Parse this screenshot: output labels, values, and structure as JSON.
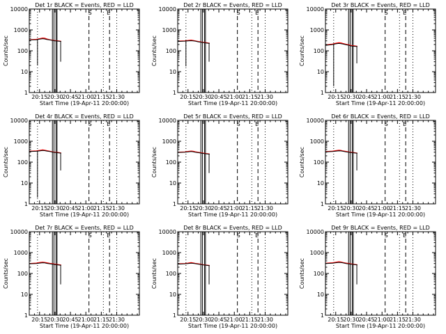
{
  "page": {
    "background": "#ffffff"
  },
  "colors": {
    "events": "#000000",
    "lld": "#ff0000"
  },
  "chart_data": {
    "type": "line",
    "yscale": "log",
    "ylim": [
      1,
      10000
    ],
    "yticks": [
      1,
      10,
      100,
      1000,
      10000
    ],
    "ytick_labels": [
      "1",
      "10",
      "100",
      "1000",
      "10000"
    ],
    "ylabel": "Counts/sec",
    "xlabel": "Start Time (19-Apr-11 20:00:00)",
    "xlim_min": [
      5,
      112
    ],
    "xticks_min": [
      15,
      30,
      45,
      60,
      75,
      90
    ],
    "xtick_labels": [
      "20:15",
      "20:30",
      "20:45",
      "21:00",
      "21:15",
      "21:30"
    ],
    "dotted_vlines_min": [
      13,
      77,
      90
    ],
    "dashed_vlines_min": [
      63,
      83
    ],
    "solid_vlines_min": [
      27.5,
      29,
      31,
      32
    ],
    "markers": [
      {
        "label": "S",
        "min": 64
      },
      {
        "label": "E",
        "min": 82
      }
    ],
    "panels": [
      {
        "title": "Det 1r BLACK = Events, RED = LLD",
        "events": [
          [
            5,
            330
          ],
          [
            12,
            340
          ],
          [
            15,
            360
          ],
          [
            18,
            380
          ],
          [
            20,
            370
          ],
          [
            22,
            350
          ],
          [
            25,
            330
          ],
          [
            28,
            310
          ],
          [
            30,
            300
          ],
          [
            33,
            290
          ],
          [
            36,
            280
          ]
        ],
        "lld": [
          [
            5,
            340
          ],
          [
            12,
            355
          ],
          [
            15,
            380
          ],
          [
            18,
            410
          ],
          [
            20,
            400
          ],
          [
            22,
            370
          ],
          [
            25,
            340
          ],
          [
            28,
            320
          ],
          [
            30,
            310
          ],
          [
            33,
            300
          ],
          [
            36,
            285
          ]
        ],
        "dips": [
          [
            13,
            20
          ],
          [
            35.5,
            30
          ]
        ]
      },
      {
        "title": "Det 2r BLACK = Events, RED = LLD",
        "events": [
          [
            5,
            280
          ],
          [
            12,
            290
          ],
          [
            15,
            300
          ],
          [
            18,
            305
          ],
          [
            20,
            300
          ],
          [
            22,
            290
          ],
          [
            25,
            270
          ],
          [
            28,
            255
          ],
          [
            30,
            245
          ],
          [
            33,
            235
          ],
          [
            36,
            225
          ]
        ],
        "lld": [
          [
            5,
            290
          ],
          [
            12,
            300
          ],
          [
            15,
            315
          ],
          [
            18,
            325
          ],
          [
            20,
            315
          ],
          [
            22,
            300
          ],
          [
            25,
            280
          ],
          [
            28,
            265
          ],
          [
            30,
            255
          ],
          [
            33,
            245
          ],
          [
            36,
            230
          ]
        ],
        "dips": [
          [
            13,
            18
          ],
          [
            35.5,
            30
          ]
        ]
      },
      {
        "title": "Det 3r BLACK = Events, RED = LLD",
        "events": [
          [
            5,
            180
          ],
          [
            12,
            200
          ],
          [
            15,
            215
          ],
          [
            18,
            225
          ],
          [
            20,
            220
          ],
          [
            22,
            210
          ],
          [
            25,
            195
          ],
          [
            28,
            180
          ],
          [
            30,
            170
          ],
          [
            33,
            165
          ],
          [
            36,
            160
          ]
        ],
        "lld": [
          [
            5,
            190
          ],
          [
            12,
            210
          ],
          [
            15,
            230
          ],
          [
            18,
            245
          ],
          [
            20,
            240
          ],
          [
            22,
            225
          ],
          [
            25,
            205
          ],
          [
            28,
            190
          ],
          [
            30,
            180
          ],
          [
            33,
            172
          ],
          [
            36,
            165
          ]
        ],
        "dips": [
          [
            13,
            2
          ],
          [
            35.5,
            25
          ]
        ]
      },
      {
        "title": "Det 4r BLACK = Events, RED = LLD",
        "events": [
          [
            5,
            320
          ],
          [
            12,
            330
          ],
          [
            15,
            345
          ],
          [
            18,
            360
          ],
          [
            20,
            355
          ],
          [
            22,
            340
          ],
          [
            25,
            320
          ],
          [
            28,
            300
          ],
          [
            30,
            290
          ],
          [
            33,
            280
          ],
          [
            36,
            270
          ]
        ],
        "lld": [
          [
            5,
            330
          ],
          [
            12,
            345
          ],
          [
            15,
            365
          ],
          [
            18,
            385
          ],
          [
            20,
            375
          ],
          [
            22,
            355
          ],
          [
            25,
            330
          ],
          [
            28,
            310
          ],
          [
            30,
            300
          ],
          [
            33,
            290
          ],
          [
            36,
            275
          ]
        ],
        "dips": [
          [
            13,
            2
          ],
          [
            35.5,
            40
          ]
        ]
      },
      {
        "title": "Det 5r BLACK = Events, RED = LLD",
        "events": [
          [
            5,
            290
          ],
          [
            12,
            300
          ],
          [
            15,
            310
          ],
          [
            18,
            320
          ],
          [
            20,
            315
          ],
          [
            22,
            300
          ],
          [
            25,
            285
          ],
          [
            28,
            270
          ],
          [
            30,
            260
          ],
          [
            33,
            250
          ],
          [
            36,
            240
          ]
        ],
        "lld": [
          [
            5,
            300
          ],
          [
            12,
            310
          ],
          [
            15,
            325
          ],
          [
            18,
            340
          ],
          [
            20,
            330
          ],
          [
            22,
            315
          ],
          [
            25,
            295
          ],
          [
            28,
            280
          ],
          [
            30,
            270
          ],
          [
            33,
            258
          ],
          [
            36,
            248
          ]
        ],
        "dips": [
          [
            35.5,
            30
          ]
        ]
      },
      {
        "title": "Det 6r BLACK = Events, RED = LLD",
        "events": [
          [
            5,
            310
          ],
          [
            12,
            320
          ],
          [
            15,
            335
          ],
          [
            18,
            350
          ],
          [
            20,
            345
          ],
          [
            22,
            330
          ],
          [
            25,
            310
          ],
          [
            28,
            295
          ],
          [
            30,
            285
          ],
          [
            33,
            275
          ],
          [
            36,
            265
          ]
        ],
        "lld": [
          [
            5,
            320
          ],
          [
            12,
            335
          ],
          [
            15,
            355
          ],
          [
            18,
            375
          ],
          [
            20,
            365
          ],
          [
            22,
            345
          ],
          [
            25,
            325
          ],
          [
            28,
            305
          ],
          [
            30,
            295
          ],
          [
            33,
            285
          ],
          [
            36,
            270
          ]
        ],
        "dips": [
          [
            35.5,
            40
          ]
        ]
      },
      {
        "title": "Det 7r BLACK = Events, RED = LLD",
        "events": [
          [
            5,
            290
          ],
          [
            12,
            300
          ],
          [
            15,
            315
          ],
          [
            18,
            325
          ],
          [
            20,
            320
          ],
          [
            22,
            305
          ],
          [
            25,
            290
          ],
          [
            28,
            275
          ],
          [
            30,
            265
          ],
          [
            33,
            255
          ],
          [
            36,
            245
          ]
        ],
        "lld": [
          [
            5,
            300
          ],
          [
            12,
            315
          ],
          [
            15,
            335
          ],
          [
            18,
            350
          ],
          [
            20,
            340
          ],
          [
            22,
            325
          ],
          [
            25,
            305
          ],
          [
            28,
            290
          ],
          [
            30,
            280
          ],
          [
            33,
            268
          ],
          [
            36,
            255
          ]
        ],
        "dips": [
          [
            35.5,
            30
          ]
        ]
      },
      {
        "title": "Det 8r BLACK = Events, RED = LLD",
        "events": [
          [
            5,
            280
          ],
          [
            12,
            290
          ],
          [
            15,
            300
          ],
          [
            18,
            310
          ],
          [
            20,
            305
          ],
          [
            22,
            295
          ],
          [
            25,
            280
          ],
          [
            28,
            265
          ],
          [
            30,
            255
          ],
          [
            33,
            245
          ],
          [
            36,
            235
          ]
        ],
        "lld": [
          [
            5,
            290
          ],
          [
            12,
            300
          ],
          [
            15,
            315
          ],
          [
            18,
            330
          ],
          [
            20,
            320
          ],
          [
            22,
            305
          ],
          [
            25,
            290
          ],
          [
            28,
            275
          ],
          [
            30,
            262
          ],
          [
            33,
            252
          ],
          [
            36,
            242
          ]
        ],
        "dips": [
          [
            35.5,
            30
          ]
        ]
      },
      {
        "title": "Det 9r BLACK = Events, RED = LLD",
        "events": [
          [
            5,
            300
          ],
          [
            12,
            310
          ],
          [
            15,
            325
          ],
          [
            18,
            340
          ],
          [
            20,
            335
          ],
          [
            22,
            320
          ],
          [
            25,
            300
          ],
          [
            28,
            285
          ],
          [
            30,
            275
          ],
          [
            33,
            265
          ],
          [
            36,
            255
          ]
        ],
        "lld": [
          [
            5,
            310
          ],
          [
            12,
            325
          ],
          [
            15,
            345
          ],
          [
            18,
            365
          ],
          [
            20,
            355
          ],
          [
            22,
            335
          ],
          [
            25,
            315
          ],
          [
            28,
            300
          ],
          [
            30,
            288
          ],
          [
            33,
            276
          ],
          [
            36,
            262
          ]
        ],
        "dips": [
          [
            35.5,
            30
          ]
        ]
      }
    ]
  }
}
